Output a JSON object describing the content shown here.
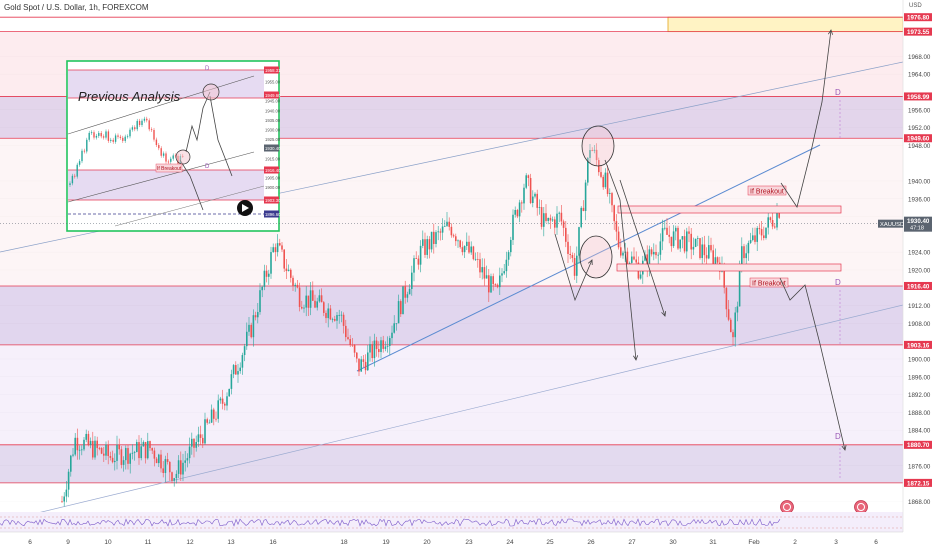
{
  "header": {
    "symbol_title": "Gold Spot / U.S. Dollar, 1h, FOREXCOM",
    "currency": "USD"
  },
  "chart_data": {
    "type": "candlestick",
    "symbol": "XAUUSD",
    "timeframe": "1h",
    "ylim": [
      1864,
      1980
    ],
    "current_price": {
      "label": "XAUUSD",
      "value": "1930.40",
      "countdown": "47:18"
    },
    "y_ticks": [
      1868.0,
      1876.0,
      1884.0,
      1888.0,
      1892.0,
      1896.0,
      1900.0,
      1908.0,
      1912.0,
      1920.0,
      1924.0,
      1932.0,
      1936.0,
      1940.0,
      1948.0,
      1952.0,
      1956.0,
      1964.0,
      1968.0
    ],
    "x_ticks": [
      {
        "label": "6",
        "x": 30
      },
      {
        "label": "9",
        "x": 68
      },
      {
        "label": "10",
        "x": 108
      },
      {
        "label": "11",
        "x": 148
      },
      {
        "label": "12",
        "x": 190
      },
      {
        "label": "13",
        "x": 231
      },
      {
        "label": "16",
        "x": 273
      },
      {
        "label": "18",
        "x": 344
      },
      {
        "label": "19",
        "x": 386
      },
      {
        "label": "20",
        "x": 427
      },
      {
        "label": "23",
        "x": 469
      },
      {
        "label": "24",
        "x": 510
      },
      {
        "label": "25",
        "x": 550
      },
      {
        "label": "26",
        "x": 591
      },
      {
        "label": "27",
        "x": 632
      },
      {
        "label": "30",
        "x": 673
      },
      {
        "label": "31",
        "x": 713
      },
      {
        "label": "Feb",
        "x": 754
      },
      {
        "label": "2",
        "x": 795
      },
      {
        "label": "3",
        "x": 836
      },
      {
        "label": "6",
        "x": 876
      }
    ],
    "levels": [
      {
        "value": 1976.8,
        "label": "1976.80"
      },
      {
        "value": 1973.55,
        "label": "1973.55"
      },
      {
        "value": 1958.99,
        "label": "1958.99"
      },
      {
        "value": 1949.6,
        "label": "1949.60"
      },
      {
        "value": 1916.4,
        "label": "1916.40"
      },
      {
        "value": 1903.16,
        "label": "1903.16"
      },
      {
        "value": 1880.7,
        "label": "1880.70"
      },
      {
        "value": 1872.15,
        "label": "1872.15"
      }
    ],
    "zones": [
      {
        "from": 1973.55,
        "to": 1976.8,
        "kind": "target"
      },
      {
        "from": 1949.6,
        "to": 1958.99,
        "kind": "resistance"
      },
      {
        "from": 1903.16,
        "to": 1916.4,
        "kind": "support"
      },
      {
        "from": 1872.15,
        "to": 1880.7,
        "kind": "support"
      }
    ],
    "annotations": {
      "if_breakout_upper": "If Breakout",
      "if_breakout_lower": "If Breakout",
      "d_labels": [
        "D",
        "D",
        "D"
      ]
    },
    "inset": {
      "title": "Previous Analysis",
      "if_breakout": "If Breakout",
      "d_labels": [
        "D",
        "D"
      ],
      "price_labels": [
        "1958.31",
        "1949.60",
        "1930.40",
        "1916.40",
        "1903.30",
        "1896.60"
      ],
      "side_ticks": [
        "1955.00",
        "1950.00",
        "1945.00",
        "1940.00",
        "1935.00",
        "1930.00",
        "1925.00",
        "1920.00",
        "1915.00",
        "1910.00",
        "1905.00",
        "1900.00"
      ]
    }
  },
  "colors": {
    "bull": "#26a69a",
    "bear": "#ef5350",
    "zone_purple": "#d9cdea",
    "zone_pink": "#fde7ea",
    "level_red": "#e53950",
    "line_blue": "#5b8bd1",
    "green_frame": "#22c55e"
  }
}
